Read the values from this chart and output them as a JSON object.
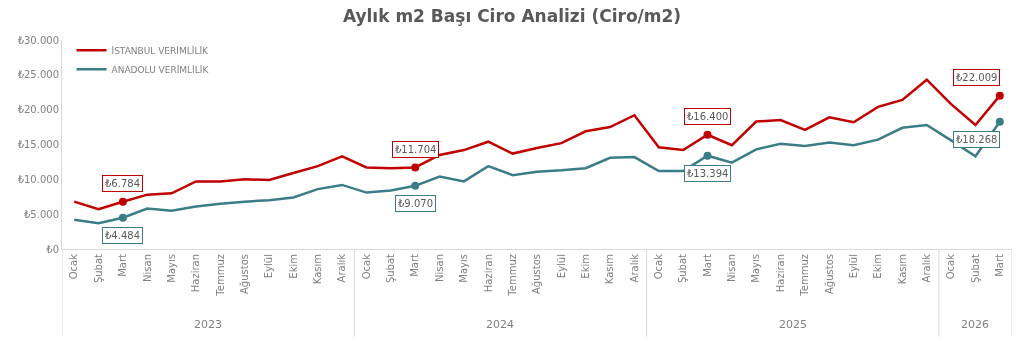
{
  "chart_data": {
    "type": "line",
    "title": "Aylık m2 Başı Ciro Analizi (Ciro/m2)",
    "categories": [
      "Ocak",
      "Şubat",
      "Mart",
      "Nisan",
      "Mayıs",
      "Haziran",
      "Temmuz",
      "Ağustos",
      "Eylül",
      "Ekim",
      "Kasım",
      "Aralık",
      "Ocak",
      "Şubat",
      "Mart",
      "Nisan",
      "Mayıs",
      "Haziran",
      "Temmuz",
      "Ağustos",
      "Eylül",
      "Ekim",
      "Kasım",
      "Aralık",
      "Ocak",
      "Şubat",
      "Mart",
      "Nisan",
      "Mayıs",
      "Haziran",
      "Temmuz",
      "Ağustos",
      "Eylül",
      "Ekim",
      "Kasım",
      "Aralık",
      "Ocak",
      "Şubat",
      "Mart"
    ],
    "annotations": [
      "2023",
      "2024",
      "2025",
      "2026"
    ],
    "series": [
      {
        "name": "İSTANBUL VERİMLİLİK",
        "color": "#c00000",
        "values": [
          6800,
          5700,
          6784,
          7800,
          8000,
          9700,
          9700,
          10000,
          9900,
          10900,
          11900,
          13300,
          11700,
          11600,
          11704,
          13500,
          14200,
          15400,
          13700,
          14500,
          15200,
          16900,
          17500,
          19200,
          14600,
          14200,
          16400,
          14900,
          18300,
          18500,
          17100,
          18900,
          18200,
          20400,
          21400,
          24300,
          20800,
          17800,
          22009
        ],
        "value_labels": [
          null,
          null,
          "₺6.784",
          null,
          null,
          null,
          null,
          null,
          null,
          null,
          null,
          null,
          null,
          null,
          "₺11.704",
          null,
          null,
          null,
          null,
          null,
          null,
          null,
          null,
          null,
          null,
          null,
          "₺16.400",
          null,
          null,
          null,
          null,
          null,
          null,
          null,
          null,
          null,
          null,
          null,
          "₺22.009"
        ]
      },
      {
        "name": "ANADOLU VERİMLİLİK",
        "color": "#3a7d87",
        "values": [
          4200,
          3700,
          4484,
          5800,
          5500,
          6100,
          6500,
          6800,
          7000,
          7400,
          8600,
          9200,
          8100,
          8400,
          9070,
          10400,
          9700,
          11900,
          10600,
          11100,
          11300,
          11600,
          13100,
          13200,
          11200,
          11200,
          13394,
          12400,
          14300,
          15100,
          14800,
          15300,
          14900,
          15700,
          17400,
          17800,
          15600,
          13300,
          18268
        ],
        "value_labels": [
          null,
          null,
          "₺4.484",
          null,
          null,
          null,
          null,
          null,
          null,
          null,
          null,
          null,
          null,
          null,
          "₺9.070",
          null,
          null,
          null,
          null,
          null,
          null,
          null,
          null,
          null,
          null,
          null,
          "₺13.394",
          null,
          null,
          null,
          null,
          null,
          null,
          null,
          null,
          null,
          null,
          null,
          "₺18.268"
        ]
      }
    ],
    "ylim": [
      0,
      30000
    ],
    "yticks": [
      {
        "value": 0,
        "label": "₺0"
      },
      {
        "value": 5000,
        "label": "₺5.000"
      },
      {
        "value": 10000,
        "label": "₺10.000"
      },
      {
        "value": 15000,
        "label": "₺15.000"
      },
      {
        "value": 20000,
        "label": "₺20.000"
      },
      {
        "value": 25000,
        "label": "₺25.000"
      },
      {
        "value": 30000,
        "label": "₺30.000"
      }
    ],
    "legend": "top left",
    "line_style": "solid"
  }
}
